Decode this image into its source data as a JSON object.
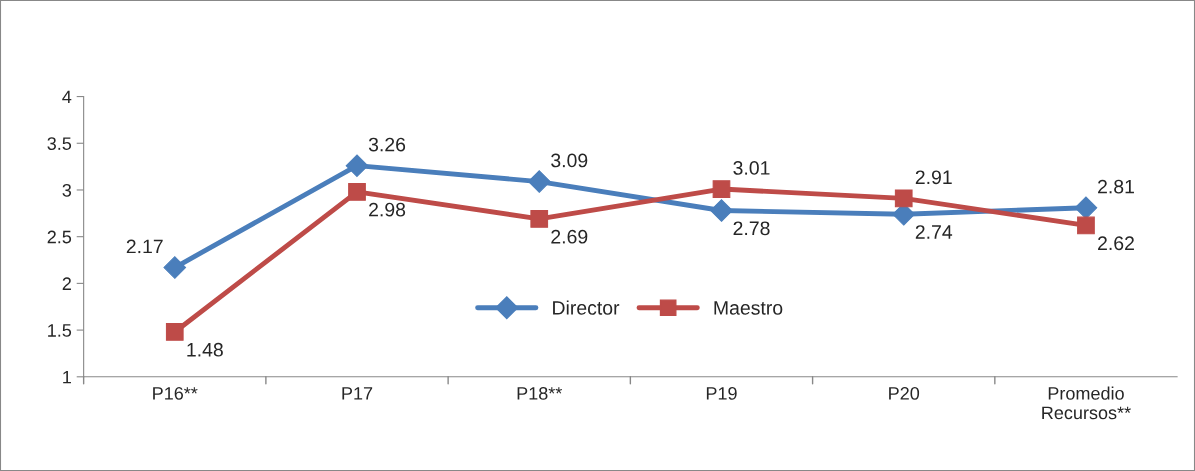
{
  "chart_data": {
    "type": "line",
    "categories": [
      "P16**",
      "P17",
      "P18**",
      "P19",
      "P20",
      "Promedio\nRecursos**"
    ],
    "series": [
      {
        "name": "Director",
        "color": "#4a7ebb",
        "marker": "diamond",
        "values": [
          2.17,
          3.26,
          3.09,
          2.78,
          2.74,
          2.81
        ]
      },
      {
        "name": "Maestro",
        "color": "#be4b48",
        "marker": "square",
        "values": [
          1.48,
          2.98,
          2.69,
          3.01,
          2.91,
          2.62
        ]
      }
    ],
    "ylim": [
      1,
      4
    ],
    "yticks": [
      1,
      1.5,
      2,
      2.5,
      3,
      3.5,
      4
    ],
    "data_labels": true,
    "legend": "center",
    "grid": false,
    "line_style": "solid"
  }
}
